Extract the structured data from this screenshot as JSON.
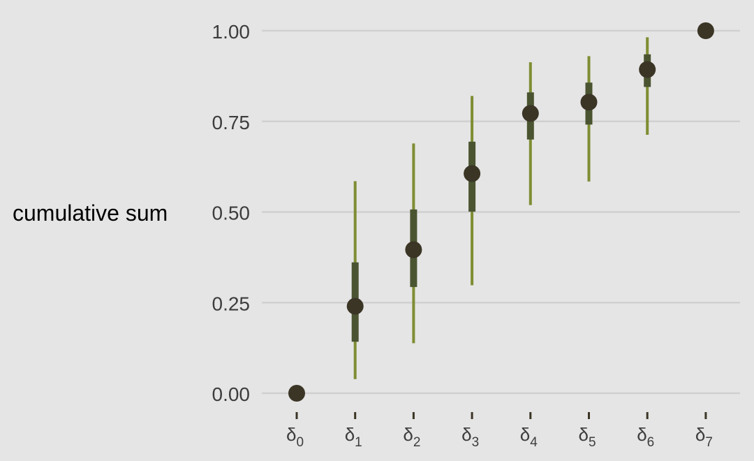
{
  "chart_data": {
    "type": "scatter",
    "title": "",
    "xlabel": "",
    "ylabel": "cumulative sum",
    "ylim": [
      0,
      1
    ],
    "y_ticks": [
      "0.00",
      "0.25",
      "0.50",
      "0.75",
      "1.00"
    ],
    "y_tick_values": [
      0,
      0.25,
      0.5,
      0.75,
      1.0
    ],
    "grid": "horizontal",
    "categories": [
      {
        "base": "δ",
        "sub": "0"
      },
      {
        "base": "δ",
        "sub": "1"
      },
      {
        "base": "δ",
        "sub": "2"
      },
      {
        "base": "δ",
        "sub": "3"
      },
      {
        "base": "δ",
        "sub": "4"
      },
      {
        "base": "δ",
        "sub": "5"
      },
      {
        "base": "δ",
        "sub": "6"
      },
      {
        "base": "δ",
        "sub": "7"
      }
    ],
    "points": [
      0.0,
      0.24,
      0.396,
      0.606,
      0.772,
      0.803,
      0.893,
      1.0
    ],
    "inner_interval": [
      null,
      [
        0.142,
        0.361
      ],
      [
        0.293,
        0.507
      ],
      [
        0.501,
        0.694
      ],
      [
        0.7,
        0.83
      ],
      [
        0.741,
        0.857
      ],
      [
        0.845,
        0.935
      ],
      null
    ],
    "outer_interval": [
      null,
      [
        0.039,
        0.585
      ],
      [
        0.138,
        0.689
      ],
      [
        0.298,
        0.82
      ],
      [
        0.519,
        0.913
      ],
      [
        0.584,
        0.93
      ],
      [
        0.713,
        0.982
      ],
      null
    ],
    "colors": {
      "background": "#e5e5e5",
      "grid": "#d0d0d0",
      "point": "#3b3526",
      "inner_interval": "#4a5431",
      "outer_interval": "#7f8d33",
      "tick_mark": "#3b3526"
    }
  }
}
